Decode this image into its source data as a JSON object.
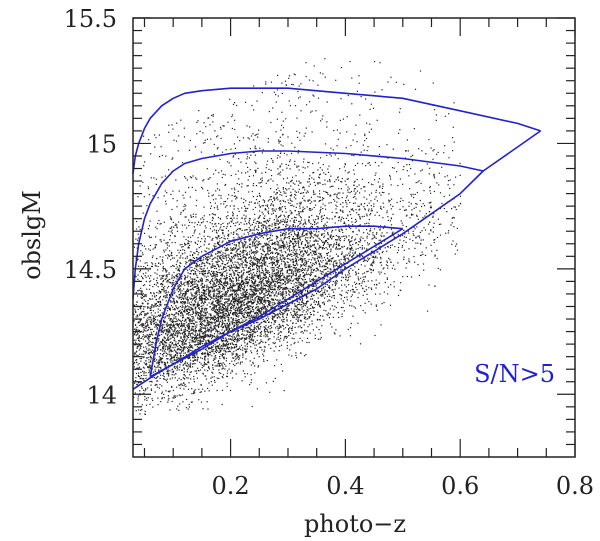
{
  "chart_data": {
    "type": "scatter",
    "title": "",
    "xlabel": "photo−z",
    "ylabel": "obslgM",
    "xlim": [
      0.03,
      0.8
    ],
    "ylim": [
      13.75,
      15.5
    ],
    "xticks": [
      0.2,
      0.4,
      0.6,
      0.8
    ],
    "xtick_labels": [
      "0.2",
      "0.4",
      "0.6",
      "0.8"
    ],
    "yticks": [
      14,
      14.5,
      15,
      15.5
    ],
    "ytick_labels": [
      "14",
      "14.5",
      "15",
      "15.5"
    ],
    "grid": false,
    "annotation": "S/N>5",
    "colors": {
      "points": "#222222",
      "curves": "#2222cc",
      "annotation": "#2222cc",
      "frame": "#222222"
    },
    "series": [
      {
        "kind": "curve",
        "x": [
          0.03,
          0.034,
          0.04,
          0.05,
          0.06,
          0.08,
          0.1,
          0.12,
          0.15,
          0.2,
          0.25,
          0.3,
          0.4,
          0.5,
          0.6,
          0.7,
          0.74
        ],
        "y": [
          14.88,
          14.95,
          15.0,
          15.06,
          15.1,
          15.15,
          15.18,
          15.2,
          15.21,
          15.22,
          15.22,
          15.22,
          15.2,
          15.18,
          15.13,
          15.08,
          15.05
        ]
      },
      {
        "kind": "curve",
        "x": [
          0.03,
          0.034,
          0.04,
          0.05,
          0.06,
          0.08,
          0.1,
          0.12,
          0.15,
          0.2,
          0.25,
          0.3,
          0.4,
          0.5,
          0.6,
          0.64
        ],
        "y": [
          14.38,
          14.5,
          14.6,
          14.7,
          14.76,
          14.84,
          14.89,
          14.92,
          14.94,
          14.96,
          14.97,
          14.97,
          14.96,
          14.94,
          14.91,
          14.89
        ]
      },
      {
        "kind": "curve",
        "x": [
          0.06,
          0.07,
          0.08,
          0.1,
          0.12,
          0.15,
          0.2,
          0.25,
          0.3,
          0.35,
          0.4,
          0.45,
          0.5
        ],
        "y": [
          14.07,
          14.2,
          14.3,
          14.42,
          14.5,
          14.55,
          14.61,
          14.64,
          14.66,
          14.66,
          14.67,
          14.67,
          14.66
        ]
      },
      {
        "kind": "curve",
        "x": [
          0.03,
          0.05,
          0.07,
          0.1,
          0.15,
          0.2,
          0.25,
          0.3,
          0.35,
          0.4,
          0.45,
          0.5,
          0.55,
          0.6,
          0.64,
          0.74
        ],
        "y": [
          14.02,
          14.05,
          14.08,
          14.12,
          14.19,
          14.25,
          14.3,
          14.36,
          14.42,
          14.5,
          14.57,
          14.64,
          14.72,
          14.8,
          14.89,
          15.05
        ]
      },
      {
        "kind": "curve",
        "x": [
          0.06,
          0.1,
          0.15,
          0.2,
          0.25,
          0.3,
          0.35,
          0.4,
          0.45,
          0.5
        ],
        "y": [
          14.07,
          14.12,
          14.18,
          14.25,
          14.31,
          14.38,
          14.45,
          14.52,
          14.59,
          14.66
        ]
      }
    ],
    "scatter_density": {
      "x_range": [
        0.03,
        0.6
      ],
      "x_peak": 0.2,
      "y_band_center_low_z": 14.12,
      "y_band_center_high_z": 14.7,
      "y_floor": 13.92,
      "y_ceiling": 15.35
    }
  }
}
